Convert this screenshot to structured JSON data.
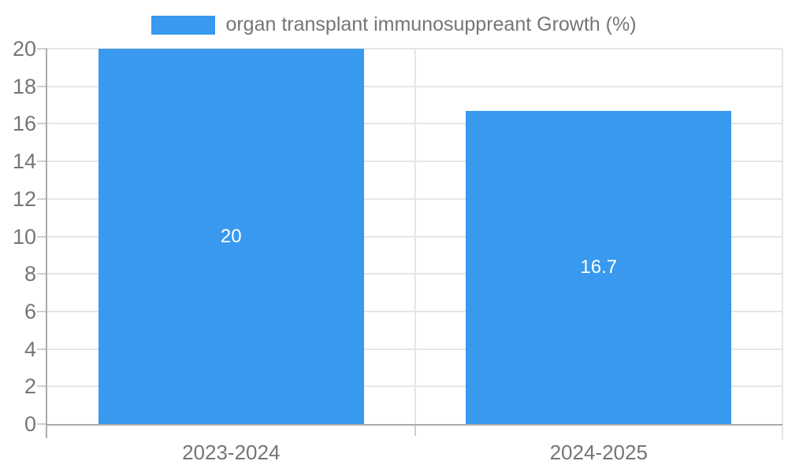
{
  "legend": {
    "label": "organ transplant immunosuppreant Growth (%)"
  },
  "chart_data": {
    "type": "bar",
    "categories": [
      "2023-2024",
      "2024-2025"
    ],
    "series": [
      {
        "name": "organ transplant immunosuppreant Growth (%)",
        "values": [
          20,
          16.7
        ],
        "data_labels": [
          "20",
          "16.7"
        ]
      }
    ],
    "ylim": [
      0,
      20
    ],
    "yticks": [
      0,
      2,
      4,
      6,
      8,
      10,
      12,
      14,
      16,
      18,
      20
    ],
    "grid": "horizontal gridlines at each ytick plus one vertical category divider",
    "legend_position": "top-center",
    "data_labels_inside_bars": true
  },
  "colors": {
    "bar": "#3899ee",
    "data_label": "#ffffff",
    "axis": "#ababab",
    "grid": "#e6e6e6",
    "tick": "#cfcfcf",
    "right_border": "#e6e6e6",
    "text": "#757575",
    "background": "#ffffff"
  }
}
